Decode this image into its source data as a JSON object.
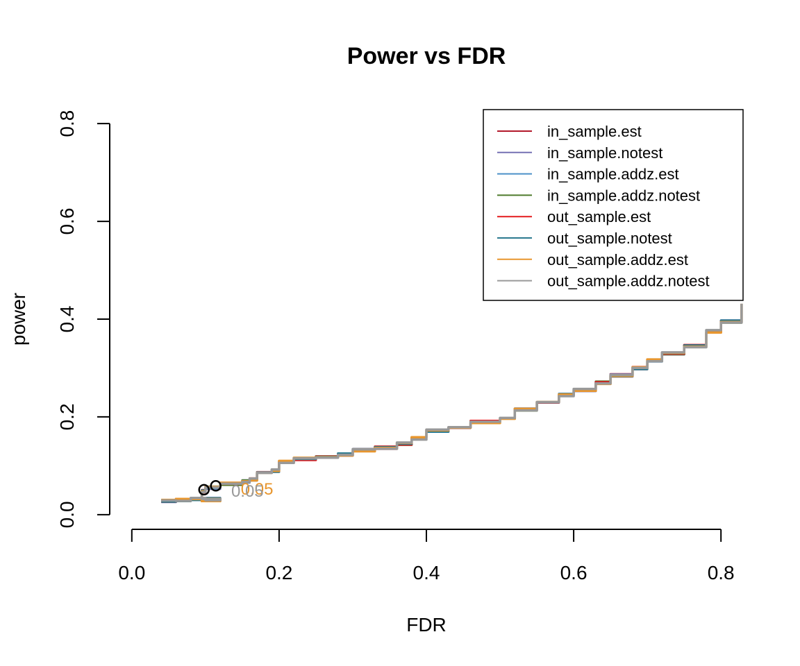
{
  "chart_data": {
    "type": "line",
    "title": "Power vs FDR",
    "xlabel": "FDR",
    "ylabel": "power",
    "xlim": [
      -0.03,
      0.83
    ],
    "ylim": [
      -0.03,
      0.83
    ],
    "xticks": [
      0.0,
      0.2,
      0.4,
      0.6,
      0.8
    ],
    "yticks": [
      0.0,
      0.2,
      0.4,
      0.6,
      0.8
    ],
    "xtick_labels": [
      "0.0",
      "0.2",
      "0.4",
      "0.6",
      "0.8"
    ],
    "ytick_labels": [
      "0.0",
      "0.2",
      "0.4",
      "0.6",
      "0.8"
    ],
    "grid": false,
    "legend_position": "top-right",
    "series": [
      {
        "name": "in_sample.est",
        "color": "#B2182B"
      },
      {
        "name": "in_sample.notest",
        "color": "#7570B3"
      },
      {
        "name": "in_sample.addz.est",
        "color": "#4A90C8"
      },
      {
        "name": "in_sample.addz.notest",
        "color": "#4D7A2A"
      },
      {
        "name": "out_sample.est",
        "color": "#E41A1C"
      },
      {
        "name": "out_sample.notest",
        "color": "#2B7A8F"
      },
      {
        "name": "out_sample.addz.est",
        "color": "#E8962E"
      },
      {
        "name": "out_sample.addz.notest",
        "color": "#999999"
      }
    ],
    "curve": {
      "x": [
        0.04,
        0.06,
        0.08,
        0.1,
        0.12,
        0.095,
        0.1,
        0.12,
        0.15,
        0.16,
        0.17,
        0.19,
        0.2,
        0.22,
        0.25,
        0.28,
        0.3,
        0.33,
        0.36,
        0.38,
        0.4,
        0.43,
        0.46,
        0.5,
        0.52,
        0.55,
        0.58,
        0.6,
        0.63,
        0.65,
        0.68,
        0.7,
        0.72,
        0.75,
        0.78,
        0.8,
        0.828
      ],
      "y": [
        0.028,
        0.03,
        0.032,
        0.032,
        0.03,
        0.048,
        0.055,
        0.063,
        0.068,
        0.072,
        0.088,
        0.09,
        0.108,
        0.114,
        0.117,
        0.123,
        0.132,
        0.137,
        0.145,
        0.156,
        0.172,
        0.18,
        0.19,
        0.197,
        0.215,
        0.228,
        0.245,
        0.255,
        0.27,
        0.285,
        0.3,
        0.315,
        0.33,
        0.345,
        0.375,
        0.395,
        0.43
      ]
    },
    "markers": [
      {
        "x": 0.098,
        "y": 0.051,
        "color": "#000000"
      },
      {
        "x": 0.114,
        "y": 0.059,
        "color": "#000000"
      }
    ],
    "annotations": [
      {
        "text": "0.05",
        "x": 0.17,
        "y": 0.052,
        "color": "#E8962E"
      },
      {
        "text": "0.05",
        "x": 0.157,
        "y": 0.048,
        "color": "#999999"
      }
    ]
  }
}
